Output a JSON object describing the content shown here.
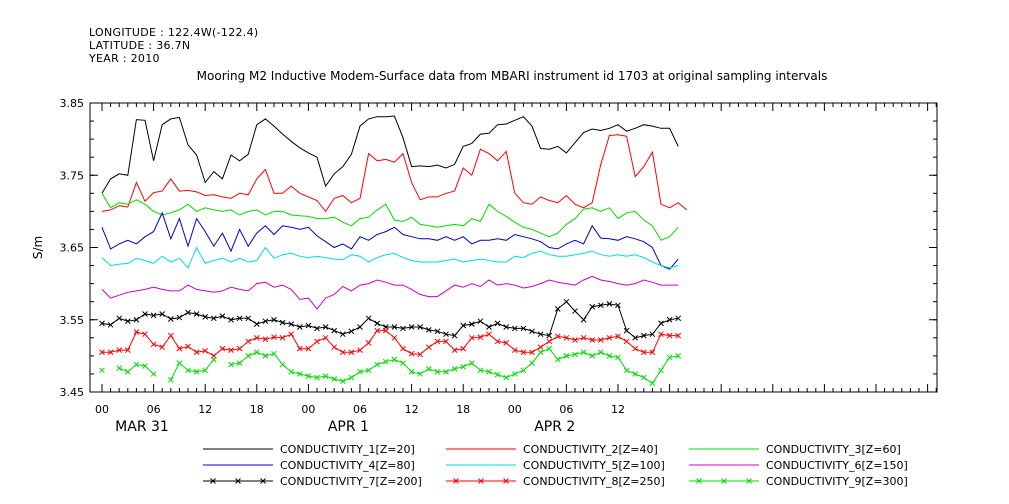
{
  "header": {
    "longitude": "LONGITUDE : 122.4W(-122.4)",
    "latitude": "LATITUDE : 36.7N",
    "year": "YEAR : 2010"
  },
  "chart_data": {
    "type": "line",
    "title": "Mooring M2 Inductive Modem-Surface data from MBARI instrument id 1703 at original sampling intervals",
    "ylabel": "S/m",
    "xlabel": "",
    "ylim": [
      3.45,
      3.85
    ],
    "yticks": [
      "3.85",
      "3.75",
      "3.65",
      "3.55",
      "3.45"
    ],
    "xticks": [
      "00",
      "06",
      "12",
      "18",
      "00",
      "06",
      "12",
      "18",
      "00",
      "06",
      "12"
    ],
    "day_labels": [
      "MAR 31",
      "APR  1",
      "APR  2"
    ],
    "grid": false,
    "legend_position": "bottom",
    "series": [
      {
        "name": "CONDUCTIVITY_1[Z=20]",
        "color": "#000000",
        "marker": "none",
        "values": [
          3.725,
          3.745,
          3.752,
          3.75,
          3.827,
          3.826,
          3.77,
          3.82,
          3.828,
          3.83,
          3.792,
          3.778,
          3.74,
          3.755,
          3.745,
          3.778,
          3.77,
          3.779,
          3.82,
          3.828,
          3.818,
          3.807,
          3.797,
          3.788,
          3.781,
          3.775,
          3.735,
          3.752,
          3.762,
          3.779,
          3.818,
          3.828,
          3.831,
          3.831,
          3.832,
          3.802,
          3.762,
          3.763,
          3.762,
          3.764,
          3.76,
          3.765,
          3.79,
          3.794,
          3.807,
          3.808,
          3.82,
          3.821,
          3.826,
          3.831,
          3.818,
          3.787,
          3.786,
          3.79,
          3.781,
          3.795,
          3.809,
          3.814,
          3.812,
          3.815,
          3.82,
          3.811,
          3.815,
          3.82,
          3.818,
          3.815,
          3.815,
          3.79
        ]
      },
      {
        "name": "CONDUCTIVITY_2[Z=40]",
        "color": "#ff0000",
        "marker": "none",
        "values": [
          3.7,
          3.702,
          3.708,
          3.706,
          3.74,
          3.714,
          3.726,
          3.728,
          3.745,
          3.728,
          3.729,
          3.727,
          3.722,
          3.723,
          3.72,
          3.718,
          3.725,
          3.723,
          3.745,
          3.758,
          3.725,
          3.725,
          3.735,
          3.725,
          3.72,
          3.715,
          3.7,
          3.718,
          3.722,
          3.712,
          3.718,
          3.78,
          3.77,
          3.772,
          3.768,
          3.78,
          3.74,
          3.716,
          3.72,
          3.72,
          3.725,
          3.728,
          3.76,
          3.75,
          3.786,
          3.78,
          3.77,
          3.783,
          3.725,
          3.712,
          3.71,
          3.72,
          3.715,
          3.712,
          3.722,
          3.71,
          3.705,
          3.712,
          3.765,
          3.805,
          3.806,
          3.804,
          3.748,
          3.762,
          3.782,
          3.71,
          3.705,
          3.712,
          3.702
        ]
      },
      {
        "name": "CONDUCTIVITY_3[Z=60]",
        "color": "#00dd00",
        "marker": "none",
        "values": [
          3.725,
          3.705,
          3.712,
          3.71,
          3.716,
          3.71,
          3.7,
          3.695,
          3.698,
          3.702,
          3.71,
          3.7,
          3.705,
          3.702,
          3.7,
          3.702,
          3.695,
          3.7,
          3.702,
          3.695,
          3.7,
          3.7,
          3.695,
          3.694,
          3.693,
          3.69,
          3.69,
          3.692,
          3.685,
          3.68,
          3.69,
          3.692,
          3.702,
          3.71,
          3.688,
          3.686,
          3.692,
          3.682,
          3.68,
          3.678,
          3.68,
          3.682,
          3.68,
          3.69,
          3.686,
          3.71,
          3.7,
          3.693,
          3.685,
          3.678,
          3.675,
          3.67,
          3.665,
          3.67,
          3.682,
          3.69,
          3.703,
          3.705,
          3.7,
          3.705,
          3.69,
          3.698,
          3.7,
          3.688,
          3.68,
          3.66,
          3.665,
          3.678
        ]
      },
      {
        "name": "CONDUCTIVITY_4[Z=80]",
        "color": "#0000cc",
        "marker": "none",
        "values": [
          3.678,
          3.648,
          3.655,
          3.66,
          3.655,
          3.665,
          3.672,
          3.698,
          3.662,
          3.69,
          3.652,
          3.69,
          3.672,
          3.652,
          3.67,
          3.645,
          3.675,
          3.652,
          3.67,
          3.68,
          3.668,
          3.68,
          3.678,
          3.675,
          3.678,
          3.666,
          3.658,
          3.65,
          3.655,
          3.648,
          3.665,
          3.66,
          3.668,
          3.672,
          3.678,
          3.668,
          3.665,
          3.662,
          3.662,
          3.66,
          3.665,
          3.66,
          3.665,
          3.655,
          3.66,
          3.66,
          3.662,
          3.66,
          3.668,
          3.665,
          3.662,
          3.658,
          3.65,
          3.648,
          3.655,
          3.66,
          3.655,
          3.68,
          3.663,
          3.662,
          3.66,
          3.665,
          3.662,
          3.658,
          3.65,
          3.625,
          3.62,
          3.634
        ]
      },
      {
        "name": "CONDUCTIVITY_5[Z=100]",
        "color": "#00dddd",
        "marker": "none",
        "values": [
          3.636,
          3.625,
          3.627,
          3.628,
          3.635,
          3.632,
          3.628,
          3.638,
          3.63,
          3.635,
          3.622,
          3.65,
          3.628,
          3.632,
          3.635,
          3.63,
          3.635,
          3.63,
          3.632,
          3.65,
          3.635,
          3.64,
          3.642,
          3.638,
          3.636,
          3.638,
          3.636,
          3.634,
          3.633,
          3.64,
          3.638,
          3.63,
          3.636,
          3.64,
          3.642,
          3.636,
          3.632,
          3.63,
          3.63,
          3.63,
          3.632,
          3.634,
          3.63,
          3.632,
          3.634,
          3.632,
          3.63,
          3.63,
          3.638,
          3.636,
          3.642,
          3.645,
          3.64,
          3.638,
          3.638,
          3.64,
          3.642,
          3.645,
          3.64,
          3.638,
          3.64,
          3.638,
          3.64,
          3.636,
          3.63,
          3.625,
          3.622,
          3.625
        ]
      },
      {
        "name": "CONDUCTIVITY_6[Z=150]",
        "color": "#cc00cc",
        "marker": "none",
        "values": [
          3.592,
          3.58,
          3.584,
          3.588,
          3.59,
          3.592,
          3.595,
          3.592,
          3.59,
          3.59,
          3.598,
          3.592,
          3.59,
          3.588,
          3.59,
          3.595,
          3.592,
          3.59,
          3.6,
          3.602,
          3.595,
          3.598,
          3.592,
          3.578,
          3.58,
          3.565,
          3.58,
          3.585,
          3.596,
          3.59,
          3.598,
          3.6,
          3.605,
          3.602,
          3.598,
          3.598,
          3.592,
          3.585,
          3.582,
          3.582,
          3.59,
          3.598,
          3.595,
          3.6,
          3.596,
          3.605,
          3.598,
          3.6,
          3.598,
          3.594,
          3.596,
          3.6,
          3.605,
          3.602,
          3.6,
          3.598,
          3.605,
          3.61,
          3.605,
          3.603,
          3.6,
          3.598,
          3.6,
          3.605,
          3.602,
          3.598,
          3.598,
          3.598
        ]
      },
      {
        "name": "CONDUCTIVITY_7[Z=200]",
        "color": "#000000",
        "marker": "x",
        "values": [
          3.545,
          3.543,
          3.552,
          3.548,
          3.55,
          3.558,
          3.556,
          3.558,
          3.551,
          3.553,
          3.56,
          3.558,
          3.554,
          3.552,
          3.555,
          3.55,
          3.552,
          3.552,
          3.544,
          3.548,
          3.55,
          3.546,
          3.544,
          3.54,
          3.542,
          3.538,
          3.54,
          3.535,
          3.53,
          3.534,
          3.54,
          3.552,
          3.545,
          3.54,
          3.54,
          3.538,
          3.54,
          3.54,
          3.536,
          3.534,
          3.53,
          3.528,
          3.542,
          3.544,
          3.548,
          3.54,
          3.545,
          3.54,
          3.538,
          3.538,
          3.534,
          3.53,
          3.528,
          3.565,
          3.575,
          3.562,
          3.55,
          3.568,
          3.57,
          3.572,
          3.57,
          3.535,
          3.525,
          3.528,
          3.53,
          3.545,
          3.55,
          3.552
        ]
      },
      {
        "name": "CONDUCTIVITY_8[Z=250]",
        "color": "#ff0000",
        "marker": "x",
        "values": [
          3.505,
          3.505,
          3.508,
          3.508,
          3.533,
          3.53,
          3.516,
          3.512,
          3.528,
          3.51,
          3.513,
          3.505,
          3.507,
          3.5,
          3.51,
          3.508,
          3.51,
          3.52,
          3.525,
          3.523,
          3.526,
          3.525,
          3.53,
          3.51,
          3.51,
          3.52,
          3.525,
          3.512,
          3.505,
          3.505,
          3.508,
          3.518,
          3.535,
          3.535,
          3.525,
          3.51,
          3.503,
          3.502,
          3.512,
          3.52,
          3.52,
          3.508,
          3.51,
          3.525,
          3.526,
          3.53,
          3.52,
          3.518,
          3.508,
          3.505,
          3.505,
          3.512,
          3.52,
          3.527,
          3.525,
          3.522,
          3.525,
          3.522,
          3.522,
          3.525,
          3.527,
          3.52,
          3.51,
          3.505,
          3.505,
          3.53,
          3.528,
          3.528
        ]
      },
      {
        "name": "CONDUCTIVITY_9[Z=300]",
        "color": "#00dd00",
        "marker": "x",
        "values": [
          3.48,
          null,
          3.483,
          3.478,
          3.488,
          3.486,
          3.475,
          null,
          3.467,
          3.49,
          3.48,
          3.478,
          3.48,
          3.495,
          null,
          3.488,
          3.49,
          3.5,
          3.505,
          3.5,
          3.503,
          3.488,
          3.478,
          3.475,
          3.472,
          3.47,
          3.472,
          3.468,
          3.465,
          3.47,
          3.478,
          3.48,
          3.488,
          3.492,
          3.495,
          3.49,
          3.478,
          3.475,
          3.482,
          3.478,
          3.478,
          3.482,
          3.485,
          3.49,
          3.48,
          3.478,
          3.474,
          3.47,
          3.475,
          3.48,
          3.49,
          3.505,
          3.51,
          3.495,
          3.5,
          3.502,
          3.505,
          3.5,
          3.505,
          3.5,
          3.498,
          3.48,
          3.475,
          3.47,
          3.462,
          3.48,
          3.498,
          3.5
        ]
      }
    ]
  }
}
